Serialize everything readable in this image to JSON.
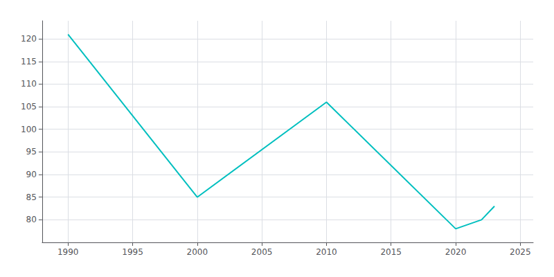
{
  "chart_data": {
    "type": "line",
    "x": [
      1990,
      2000,
      2010,
      2020,
      2021,
      2022,
      2023
    ],
    "values": [
      121,
      85,
      106,
      78,
      79,
      80,
      83
    ],
    "color": "#00BFBF",
    "xlim": [
      1988,
      2026
    ],
    "ylim": [
      75,
      124
    ],
    "xticks": [
      1990,
      1995,
      2000,
      2005,
      2010,
      2015,
      2020,
      2025
    ],
    "yticks": [
      80,
      85,
      90,
      95,
      100,
      105,
      110,
      115,
      120
    ],
    "grid": true
  }
}
